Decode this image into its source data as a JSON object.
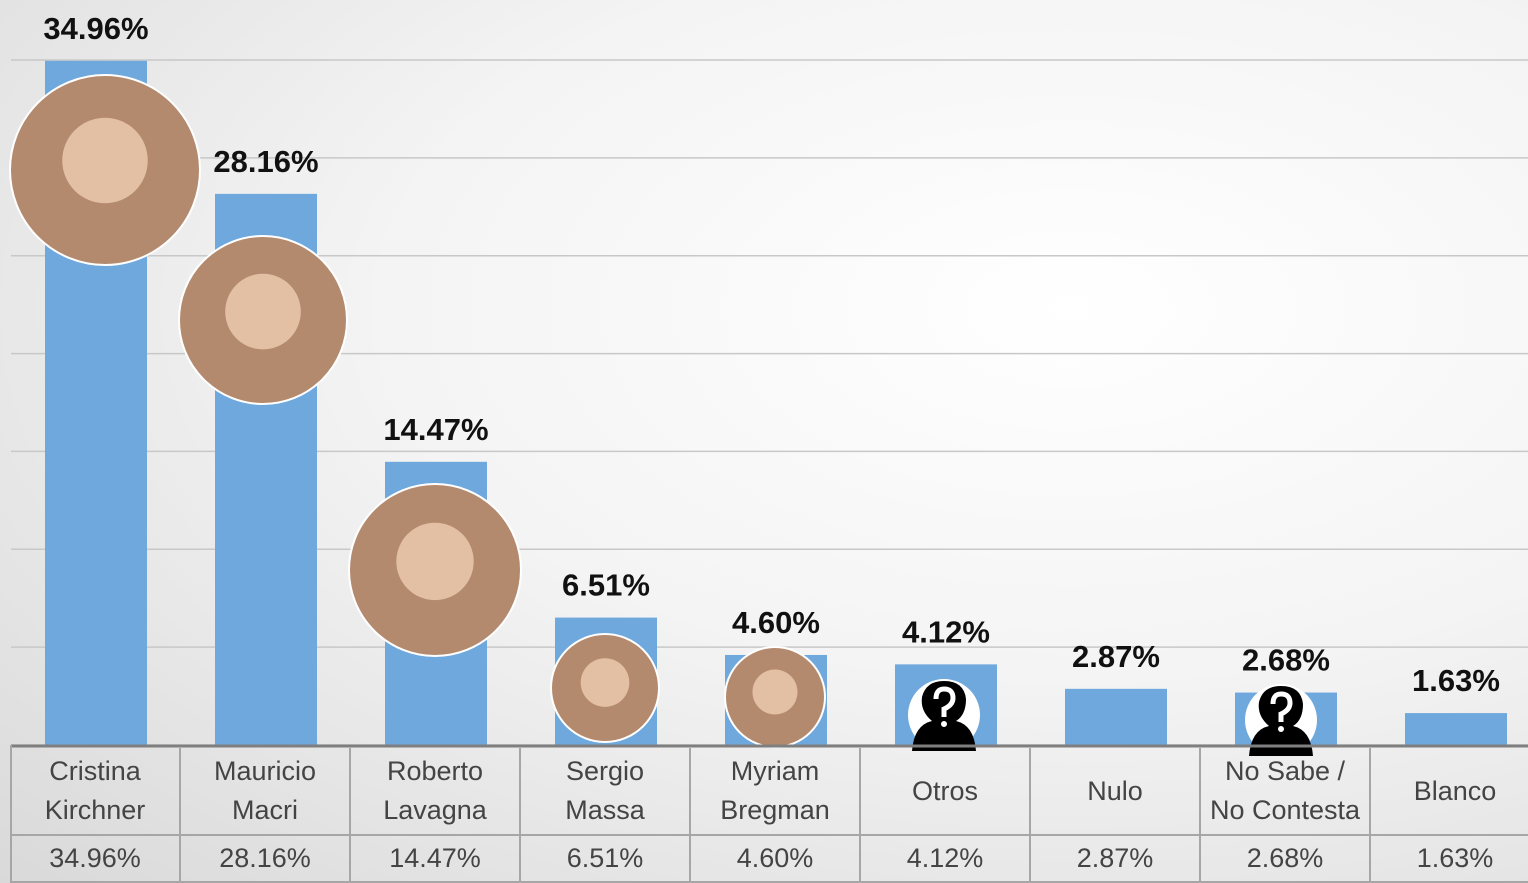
{
  "chart_data": {
    "type": "bar",
    "categories": [
      "Cristina\nKirchner",
      "Mauricio\nMacri",
      "Roberto\nLavagna",
      "Sergio\nMassa",
      "Myriam\nBregman",
      "Otros",
      "Nulo",
      "No Sabe /\nNo Contesta",
      "Blanco"
    ],
    "values": [
      34.96,
      28.16,
      14.47,
      6.51,
      4.6,
      4.12,
      2.87,
      2.68,
      1.63
    ],
    "value_labels": [
      "34.96%",
      "28.16%",
      "14.47%",
      "6.51%",
      "4.60%",
      "4.12%",
      "2.87%",
      "2.68%",
      "1.63%"
    ],
    "color": "#6fa8dc",
    "ylim": [
      0,
      35
    ],
    "yticks": [
      0,
      5,
      10,
      15,
      20,
      25,
      30,
      35
    ],
    "grid": true
  }
}
